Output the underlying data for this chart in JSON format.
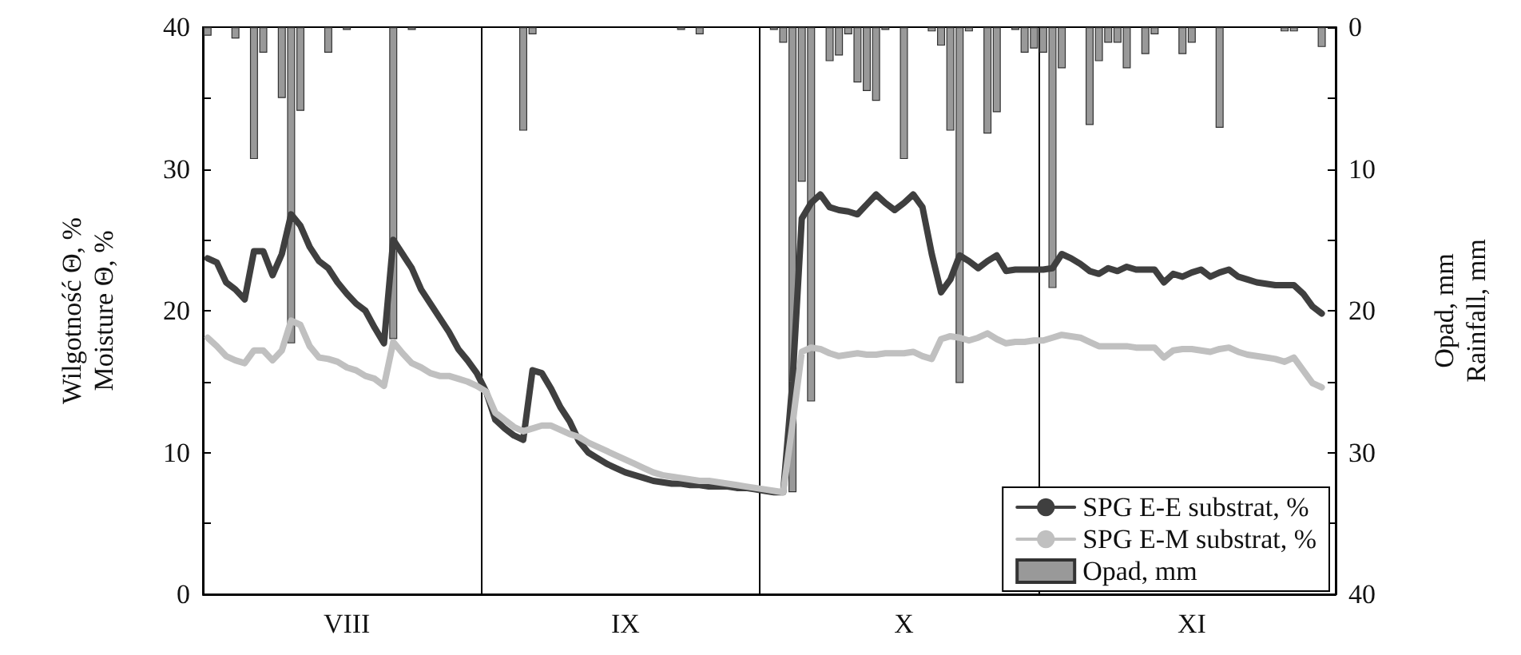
{
  "chart_data": {
    "type": "line",
    "ylabel": "Wilgotność Θ, %\nMoisture Θ, %",
    "y2label": "Opad, mm\nRainfall, mm",
    "categories": [
      null,
      null,
      null,
      null,
      null,
      null,
      null,
      null,
      null,
      null,
      null,
      null,
      null,
      null,
      null,
      "VIII",
      null,
      null,
      null,
      null,
      null,
      null,
      null,
      null,
      null,
      null,
      null,
      null,
      null,
      null,
      null,
      null,
      null,
      null,
      null,
      null,
      null,
      null,
      null,
      null,
      null,
      null,
      null,
      null,
      null,
      "IX",
      null,
      null,
      null,
      null,
      null,
      null,
      null,
      null,
      null,
      null,
      null,
      null,
      null,
      null,
      null,
      null,
      null,
      null,
      null,
      null,
      null,
      null,
      null,
      null,
      null,
      null,
      null,
      null,
      null,
      "X",
      null,
      null,
      null,
      null,
      null,
      null,
      null,
      null,
      null,
      null,
      null,
      null,
      null,
      null,
      null,
      null,
      null,
      null,
      null,
      null,
      null,
      null,
      null,
      null,
      null,
      null,
      null,
      null,
      null,
      null,
      "XI",
      null,
      null,
      null,
      null,
      null,
      null,
      null,
      null,
      null,
      null,
      null,
      null,
      null,
      null,
      null
    ],
    "ylim": [
      0,
      40
    ],
    "yticks": [
      0,
      {
        "value": 5,
        "label": null
      },
      10,
      {
        "value": 15,
        "label": null
      },
      20,
      {
        "value": 25,
        "label": null
      },
      30,
      {
        "value": 35,
        "label": null
      },
      40
    ],
    "y2lim": [
      40,
      0
    ],
    "y2ticks": [
      0,
      {
        "value": 5,
        "label": null
      },
      10,
      {
        "value": 15,
        "label": null
      },
      20,
      {
        "value": 25,
        "label": null
      },
      30,
      {
        "value": 35,
        "label": null
      },
      40
    ],
    "series": [
      {
        "name": "SPG E-E substrat, %",
        "color": "#3f3f3f",
        "values": [
          23.7,
          23.4,
          22,
          21.5,
          20.8,
          24.2,
          24.2,
          22.5,
          24,
          26.8,
          26,
          24.5,
          23.5,
          23,
          22,
          21.2,
          20.5,
          20,
          18.8,
          17.7,
          25,
          24,
          23,
          21.5,
          20.5,
          19.5,
          18.5,
          17.3,
          16.5,
          15.6,
          14.3,
          12.3,
          11.7,
          11.2,
          10.9,
          15.8,
          15.6,
          14.5,
          13.2,
          12.2,
          10.8,
          10.0,
          9.6,
          9.2,
          8.9,
          8.6,
          8.4,
          8.2,
          8.0,
          7.9,
          7.8,
          7.8,
          7.7,
          7.7,
          7.6,
          7.6,
          7.6,
          7.5,
          7.5,
          7.4,
          7.3,
          7.2,
          7.2,
          15,
          26.5,
          27.6,
          28.2,
          27.3,
          27.1,
          27.0,
          26.8,
          27.5,
          28.2,
          27.6,
          27.1,
          27.6,
          28.2,
          27.3,
          24.0,
          21.3,
          22.2,
          23.9,
          23.5,
          23.0,
          23.5,
          23.9,
          22.8,
          22.9,
          22.9,
          22.9,
          22.9,
          23.0,
          24.0,
          23.7,
          23.3,
          22.8,
          22.6,
          23.0,
          22.8,
          23.1,
          22.9,
          22.9,
          22.9,
          22.0,
          22.6,
          22.4,
          22.7,
          22.9,
          22.4,
          22.7,
          22.9,
          22.4,
          22.2,
          22.0,
          21.9,
          21.8,
          21.8,
          21.8,
          21.2,
          20.3,
          19.8,
          null
        ]
      },
      {
        "name": "SPG E-M substrat, %",
        "color": "#c0c0c0",
        "values": [
          18.1,
          17.5,
          16.8,
          16.5,
          16.3,
          17.2,
          17.2,
          16.5,
          17.2,
          19.3,
          19,
          17.5,
          16.7,
          16.6,
          16.4,
          16,
          15.8,
          15.4,
          15.2,
          14.7,
          17.8,
          17,
          16.3,
          16,
          15.6,
          15.4,
          15.4,
          15.2,
          15.0,
          14.7,
          14.3,
          12.8,
          12.3,
          11.8,
          11.5,
          11.7,
          11.9,
          11.9,
          11.6,
          11.3,
          11.1,
          10.7,
          10.4,
          10.1,
          9.8,
          9.5,
          9.2,
          8.9,
          8.6,
          8.4,
          8.3,
          8.2,
          8.1,
          8.0,
          8.0,
          7.9,
          7.8,
          7.7,
          7.6,
          7.5,
          7.4,
          7.3,
          7.2,
          12,
          17.1,
          17.4,
          17.3,
          17.0,
          16.8,
          16.9,
          17.0,
          16.9,
          16.9,
          17.0,
          17.0,
          17.0,
          17.1,
          16.8,
          16.6,
          18.0,
          18.2,
          18.1,
          17.9,
          18.1,
          18.4,
          18.0,
          17.7,
          17.8,
          17.8,
          17.9,
          17.9,
          18.1,
          18.3,
          18.2,
          18.1,
          17.8,
          17.5,
          17.5,
          17.5,
          17.5,
          17.4,
          17.4,
          17.4,
          16.7,
          17.2,
          17.3,
          17.3,
          17.2,
          17.1,
          17.3,
          17.4,
          17.1,
          16.9,
          16.8,
          16.7,
          16.6,
          16.4,
          16.7,
          15.8,
          14.9,
          14.6,
          null
        ]
      },
      {
        "name": "Opad, mm",
        "type": "bar",
        "axis": "y2",
        "color": "#999999",
        "values": [
          0.6,
          null,
          null,
          0.8,
          null,
          9.3,
          1.8,
          null,
          5.0,
          22.3,
          5.9,
          null,
          null,
          1.8,
          null,
          0.2,
          null,
          null,
          null,
          null,
          22.0,
          null,
          0.2,
          null,
          null,
          null,
          null,
          null,
          null,
          null,
          null,
          null,
          null,
          null,
          7.3,
          0.5,
          null,
          null,
          null,
          null,
          null,
          null,
          null,
          null,
          null,
          null,
          null,
          null,
          null,
          null,
          null,
          0.2,
          null,
          0.5,
          null,
          null,
          null,
          null,
          null,
          null,
          null,
          0.2,
          1.1,
          32.8,
          10.9,
          26.4,
          null,
          2.4,
          2.0,
          0.5,
          3.9,
          4.5,
          5.2,
          0.2,
          null,
          9.3,
          null,
          null,
          0.3,
          1.3,
          7.3,
          25.1,
          0.3,
          null,
          7.5,
          6.0,
          null,
          0.2,
          1.8,
          1.5,
          1.8,
          18.4,
          2.9,
          null,
          null,
          6.9,
          2.4,
          1.1,
          1.1,
          2.9,
          null,
          1.9,
          0.5,
          null,
          null,
          1.9,
          1.1,
          null,
          null,
          7.1,
          null,
          null,
          null,
          null,
          null,
          null,
          0.3,
          0.3,
          null,
          null,
          1.4,
          null
        ]
      }
    ],
    "legend": "bottom right",
    "marker": "none",
    "line_style": "solid",
    "grid": false
  }
}
